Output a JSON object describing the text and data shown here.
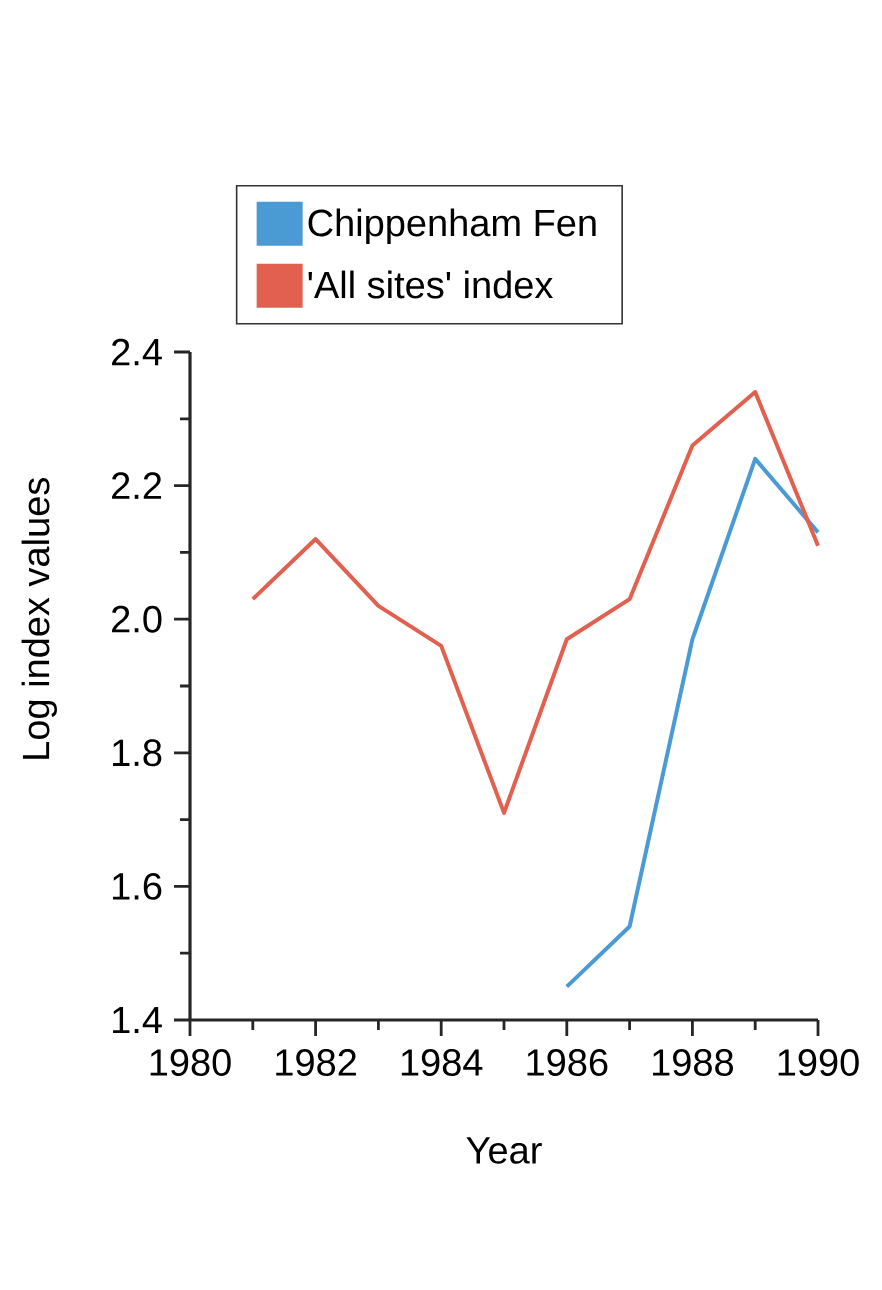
{
  "chart_data": {
    "type": "line",
    "xlabel": "Year",
    "ylabel": "Log index values",
    "xlim": [
      1980,
      1990
    ],
    "ylim": [
      1.4,
      2.4
    ],
    "xticks": [
      1980,
      {
        "value": 1981,
        "label": null
      },
      1982,
      {
        "value": 1983,
        "label": null
      },
      1984,
      {
        "value": 1985,
        "label": null
      },
      1986,
      {
        "value": 1987,
        "label": null
      },
      1988,
      {
        "value": 1989,
        "label": null
      },
      1990
    ],
    "yticks": [
      1.4,
      {
        "value": 1.5,
        "label": null
      },
      1.6,
      {
        "value": 1.7,
        "label": null
      },
      1.8,
      {
        "value": 1.9,
        "label": null
      },
      {
        "value": 2,
        "label": "2.0"
      },
      {
        "value": 2.1,
        "label": null
      },
      2.2,
      {
        "value": 2.3,
        "label": null
      },
      2.4
    ],
    "legend": "top",
    "series": [
      {
        "name": "Chippenham Fen",
        "color": "#4a9bd4",
        "x": [
          1986,
          1987,
          1988,
          1989,
          1990
        ],
        "values": [
          1.45,
          1.54,
          1.97,
          2.24,
          2.13
        ]
      },
      {
        "name": "'All sites' index",
        "color": "#e2604f",
        "x": [
          1981,
          1982,
          1983,
          1984,
          1985,
          1986,
          1987,
          1988,
          1989,
          1990
        ],
        "values": [
          2.03,
          2.12,
          2.02,
          1.96,
          1.71,
          1.97,
          2.03,
          2.26,
          2.34,
          2.11
        ]
      }
    ]
  }
}
